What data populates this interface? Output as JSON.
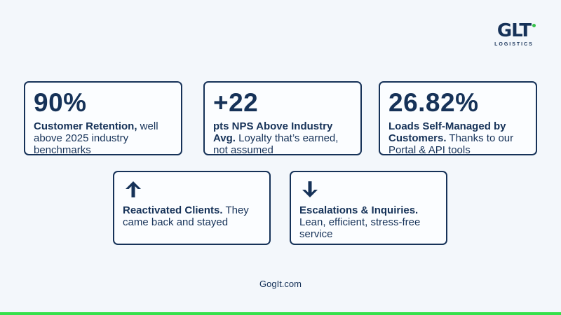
{
  "logo": {
    "mark": "GLT",
    "sub": "LOGISTICS"
  },
  "stats": [
    {
      "value": "90%",
      "bold": "Customer Retention,",
      "rest": " well above 2025 industry benchmarks"
    },
    {
      "value": "+22",
      "bold": "pts NPS Above Industry Avg.",
      "rest": " Loyalty that’s earned, not assumed"
    },
    {
      "value": "26.82%",
      "bold": "Loads Self-Managed by Customers.",
      "rest": " Thanks to our Portal & API tools"
    },
    {
      "icon": "arrow-up-icon",
      "bold": "Reactivated Clients.",
      "rest": " They came back and stayed"
    },
    {
      "icon": "arrow-down-icon",
      "bold": "Escalations & Inquiries.",
      "rest": " Lean, efficient, stress-free service"
    }
  ],
  "footer": {
    "site": "GogIt.com"
  },
  "colors": {
    "navy": "#163258",
    "accent": "#35e04a",
    "background": "#f3f7fb"
  }
}
